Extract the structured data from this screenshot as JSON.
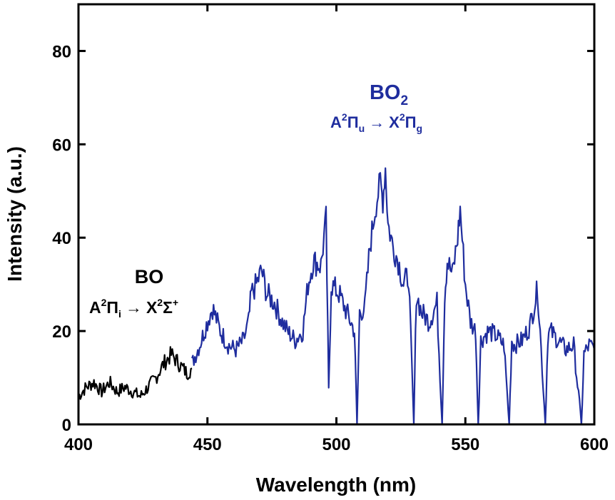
{
  "chart_data": {
    "type": "line",
    "xlabel": "Wavelength (nm)",
    "ylabel": "Intensity (a.u.)",
    "xlim": [
      400,
      600
    ],
    "ylim": [
      0,
      90
    ],
    "xticks": [
      400,
      450,
      500,
      550,
      600
    ],
    "yticks": [
      0,
      20,
      40,
      60,
      80
    ],
    "series": [
      {
        "name": "BO",
        "color": "#000000",
        "x": [
          400,
          403,
          406,
          409,
          412,
          415,
          418,
          421,
          424,
          427,
          430,
          433,
          436,
          439,
          442,
          444
        ],
        "y": [
          6,
          8,
          9,
          7,
          9,
          7,
          8,
          7,
          6,
          8,
          10,
          13,
          15,
          13,
          11,
          12
        ]
      },
      {
        "name": "BO2",
        "color": "#1f2d9e",
        "x": [
          444,
          447,
          450,
          452,
          455,
          458,
          461,
          464,
          466,
          467,
          469,
          471,
          473,
          476,
          479,
          481,
          484,
          487,
          489,
          491,
          494,
          496,
          497,
          498,
          501,
          504,
          507,
          508,
          509,
          511,
          513,
          515,
          517,
          518,
          519,
          520,
          522,
          524,
          526,
          528,
          530,
          531,
          533,
          536,
          539,
          541,
          542,
          543,
          545,
          547,
          548,
          550,
          552,
          554,
          555,
          556,
          559,
          562,
          565,
          567,
          568,
          569,
          572,
          575,
          578,
          579,
          581,
          582,
          583,
          586,
          589,
          592,
          595,
          596,
          598,
          600
        ],
        "y": [
          13,
          17,
          22,
          25,
          20,
          17,
          16,
          18,
          22,
          28,
          30,
          33,
          28,
          26,
          22,
          20,
          18,
          20,
          30,
          35,
          34,
          44,
          7,
          30,
          28,
          24,
          20,
          0,
          24,
          25,
          38,
          46,
          52,
          48,
          55,
          43,
          38,
          35,
          30,
          32,
          0,
          28,
          24,
          22,
          26,
          0,
          28,
          35,
          32,
          40,
          46,
          30,
          22,
          20,
          0,
          18,
          20,
          19,
          17,
          0,
          18,
          17,
          18,
          21,
          29,
          20,
          0,
          19,
          20,
          18,
          16,
          17,
          0,
          15,
          17,
          16
        ]
      }
    ],
    "annotations": {
      "bo": {
        "title": "BO",
        "transition": {
          "upper": "A",
          "upper_sup": "2",
          "upper_term": "Π",
          "upper_sub": "i",
          "arrow": "→",
          "lower": "X",
          "lower_sup": "2",
          "lower_term": "Σ",
          "lower_term_sup": "+"
        }
      },
      "bo2": {
        "title": "BO",
        "title_sub": "2",
        "transition": {
          "upper": "A",
          "upper_sup": "2",
          "upper_term": "Π",
          "upper_sub": "u",
          "arrow": "→",
          "lower": "X",
          "lower_sup": "2",
          "lower_term": "Π",
          "lower_sub": "g"
        }
      }
    }
  }
}
